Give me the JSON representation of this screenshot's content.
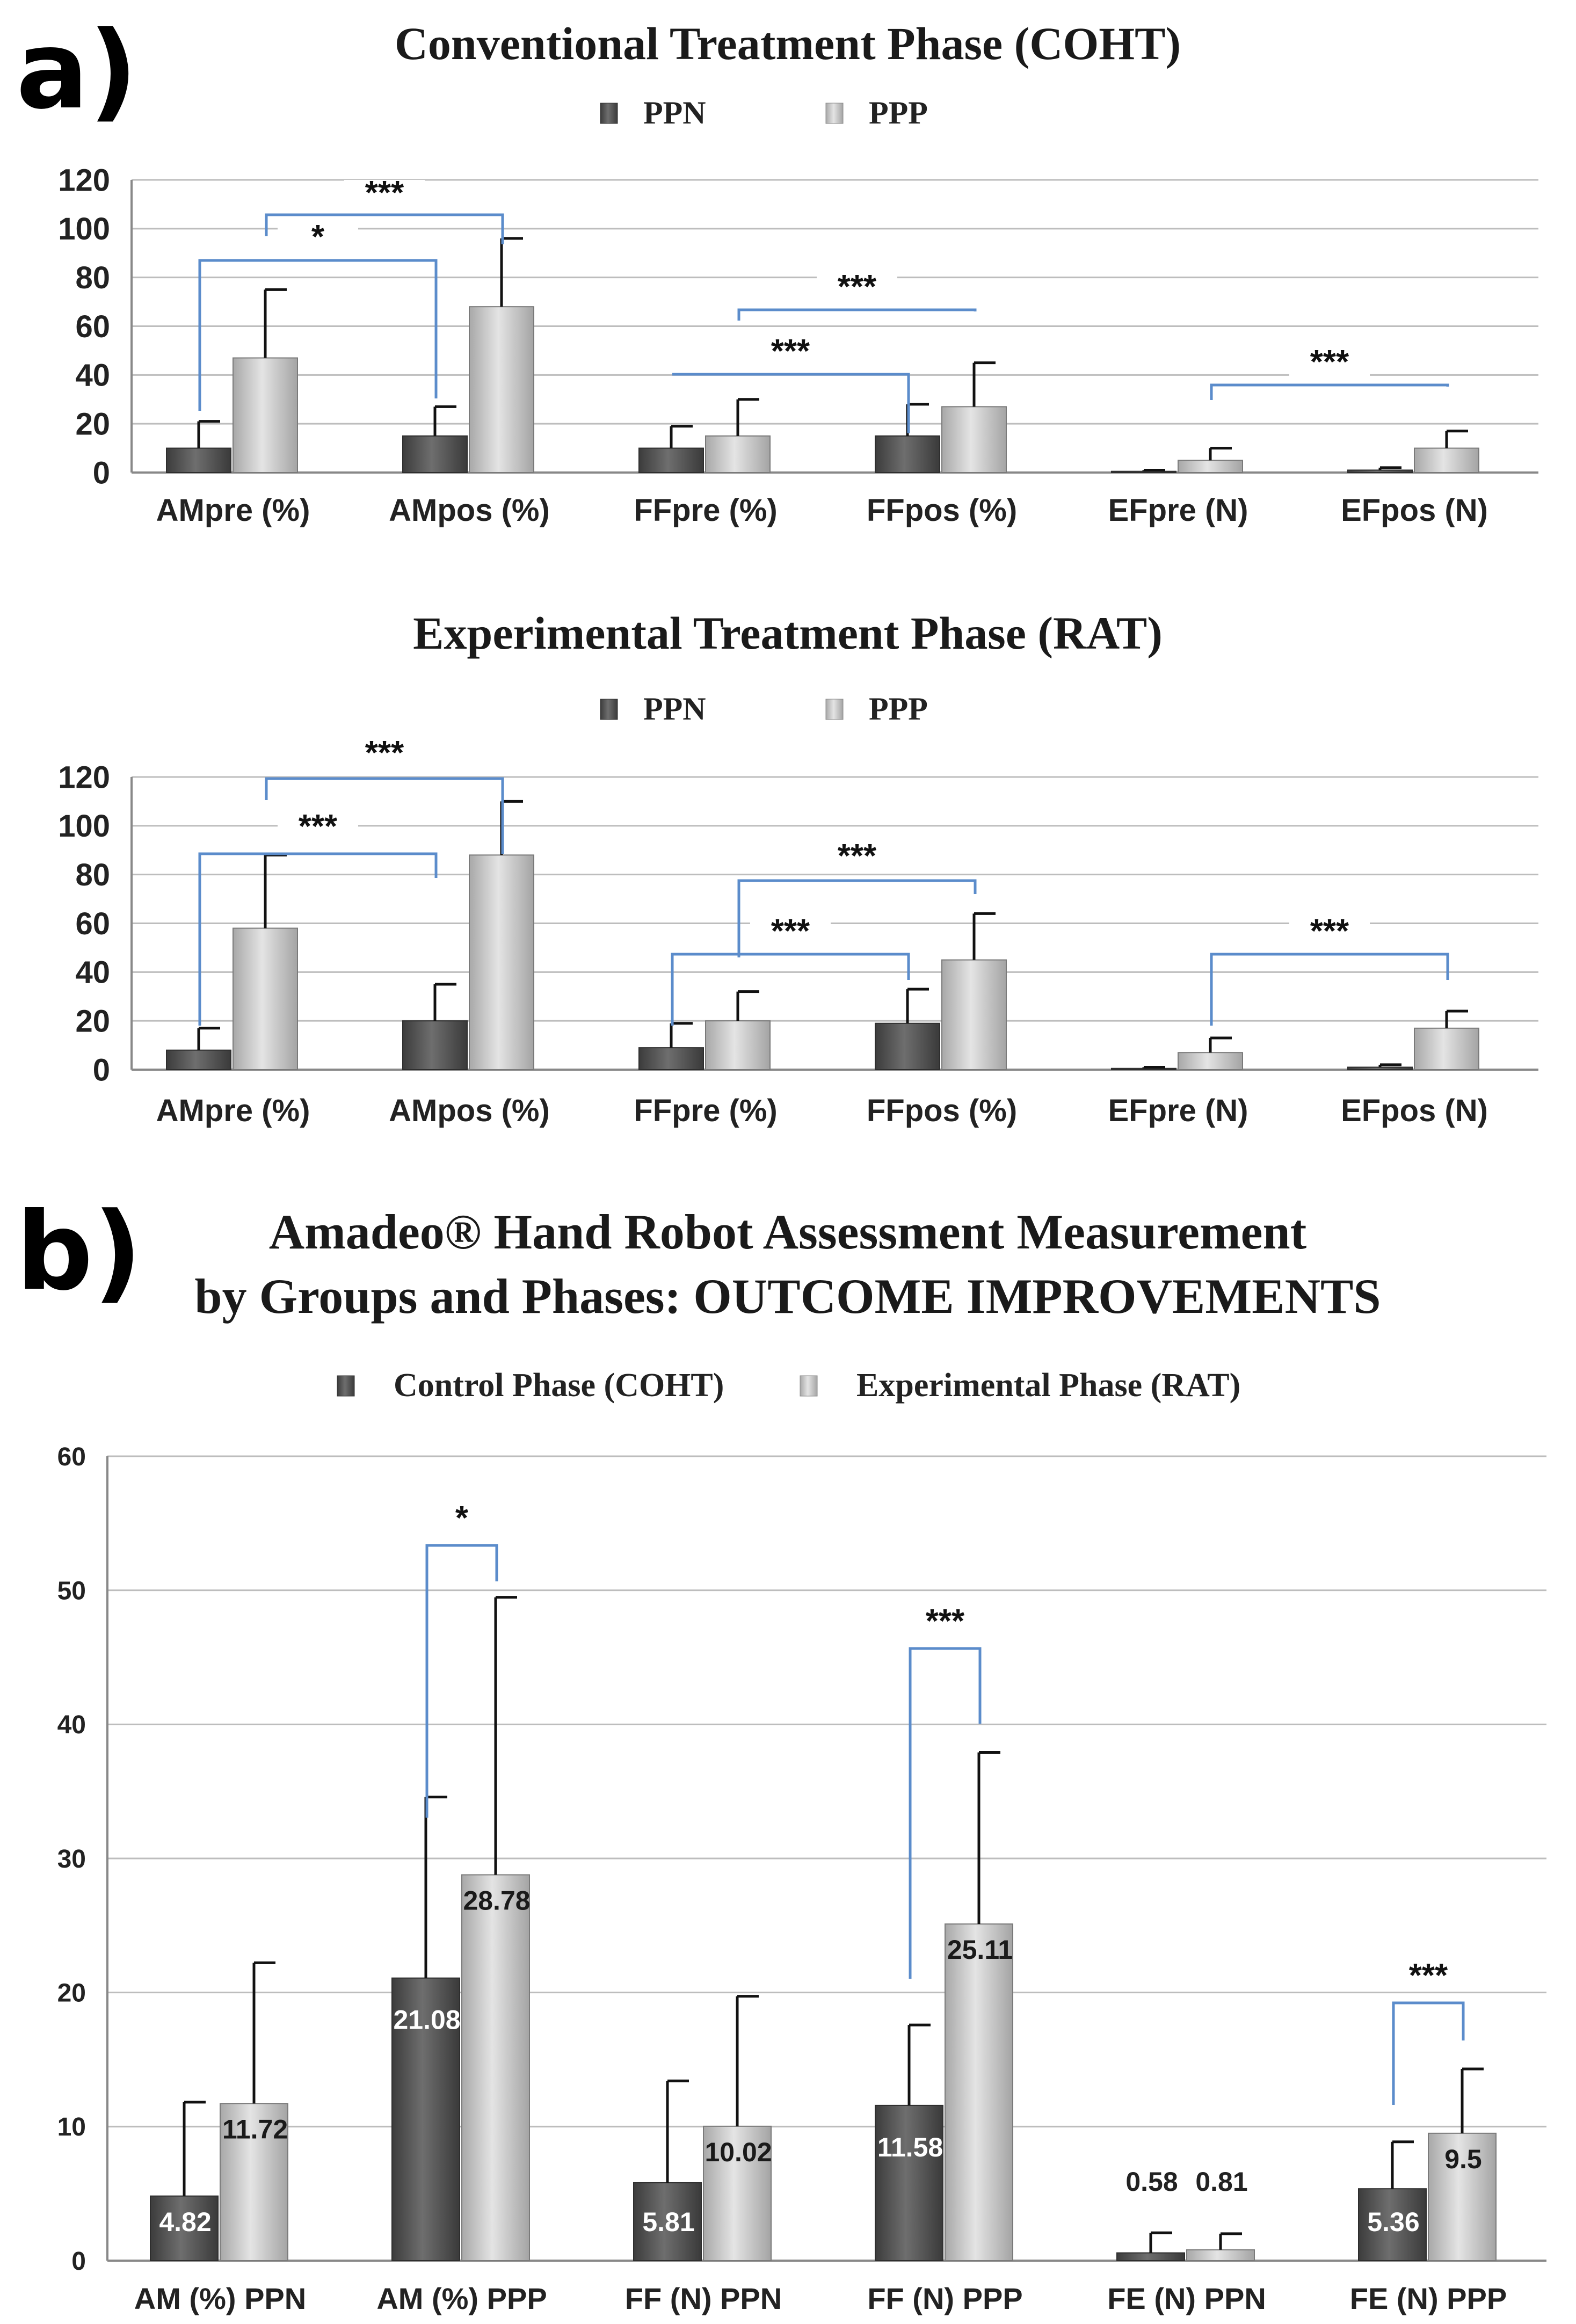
{
  "panel_a_label": "a)",
  "panel_b_label": "b)",
  "colors": {
    "dark": "#555555",
    "light": "#c7c7c7",
    "bracket": "#5b8ccb",
    "grid": "#bdbdbd",
    "axis": "#888888"
  },
  "chart_data": [
    {
      "type": "bar",
      "title": "Conventional Treatment Phase (COHT)",
      "categories": [
        "AMpre (%)",
        "AMpos (%)",
        "FFpre (%)",
        "FFpos (%)",
        "EFpre (N)",
        "EFpos (N)"
      ],
      "series": [
        {
          "name": "PPN",
          "values": [
            10,
            15,
            10,
            15,
            0.5,
            1
          ],
          "errors": [
            11,
            12,
            9,
            13,
            0.5,
            1
          ]
        },
        {
          "name": "PPP",
          "values": [
            47,
            68,
            15,
            27,
            5,
            10
          ],
          "errors": [
            28,
            28,
            15,
            18,
            5,
            7
          ]
        }
      ],
      "ylim": [
        0,
        120
      ],
      "yticks": [
        0,
        20,
        40,
        60,
        80,
        100,
        120
      ],
      "significance": [
        {
          "label": "***",
          "from_index": 0,
          "to_index": 1,
          "series": "PPP"
        },
        {
          "label": "*",
          "from_index": 0,
          "to_index": 1,
          "series": "PPN"
        },
        {
          "label": "***",
          "from_index": 2,
          "to_index": 3,
          "series": "PPP"
        },
        {
          "label": "***",
          "from_index": 2,
          "to_index": 3,
          "series": "PPN"
        },
        {
          "label": "***",
          "from_index": 4,
          "to_index": 5,
          "series": "PPP"
        }
      ]
    },
    {
      "type": "bar",
      "title": "Experimental Treatment Phase (RAT)",
      "categories": [
        "AMpre (%)",
        "AMpos (%)",
        "FFpre (%)",
        "FFpos (%)",
        "EFpre (N)",
        "EFpos (N)"
      ],
      "series": [
        {
          "name": "PPN",
          "values": [
            8,
            20,
            9,
            19,
            0.5,
            1
          ],
          "errors": [
            9,
            15,
            10,
            14,
            0.5,
            1
          ]
        },
        {
          "name": "PPP",
          "values": [
            58,
            88,
            20,
            45,
            7,
            17
          ],
          "errors": [
            30,
            22,
            12,
            19,
            6,
            7
          ]
        }
      ],
      "ylim": [
        0,
        120
      ],
      "yticks": [
        0,
        20,
        40,
        60,
        80,
        100,
        120
      ],
      "significance": [
        {
          "label": "***",
          "from_index": 0,
          "to_index": 1,
          "series": "PPP"
        },
        {
          "label": "***",
          "from_index": 0,
          "to_index": 1,
          "series": "PPN"
        },
        {
          "label": "***",
          "from_index": 2,
          "to_index": 3,
          "series": "PPP"
        },
        {
          "label": "***",
          "from_index": 2,
          "to_index": 3,
          "series": "PPN"
        },
        {
          "label": "***",
          "from_index": 4,
          "to_index": 5,
          "series": "PPP"
        }
      ]
    },
    {
      "type": "bar",
      "title": "Amadeo® Hand Robot Assessment Measurement",
      "subtitle": "by Groups and Phases: OUTCOME IMPROVEMENTS",
      "categories": [
        "AM (%) PPN",
        "AM (%) PPP",
        "FF (N) PPN",
        "FF (N) PPP",
        "FE (N) PPN",
        "FE (N) PPP"
      ],
      "series": [
        {
          "name": "Control Phase (COHT)",
          "values": [
            4.82,
            21.08,
            5.81,
            11.58,
            0.58,
            5.36
          ],
          "errors": [
            7,
            13.5,
            7.6,
            6,
            1.5,
            3.5
          ]
        },
        {
          "name": "Experimental Phase (RAT)",
          "values": [
            11.72,
            28.78,
            10.02,
            25.11,
            0.81,
            9.5
          ],
          "errors": [
            10.5,
            20.7,
            9.7,
            12.8,
            1.2,
            4.8
          ]
        }
      ],
      "data_labels": [
        [
          "4.82",
          "21.08",
          "5.81",
          "11.58",
          "0.58",
          "5.36"
        ],
        [
          "11.72",
          "28.78",
          "10.02",
          "25.11",
          "0.81",
          "9.5"
        ]
      ],
      "ylim": [
        0,
        60
      ],
      "yticks": [
        0,
        10,
        20,
        30,
        40,
        50,
        60
      ],
      "significance": [
        {
          "label": "*",
          "index": 1
        },
        {
          "label": "***",
          "index": 3
        },
        {
          "label": "***",
          "index": 5
        }
      ]
    }
  ]
}
